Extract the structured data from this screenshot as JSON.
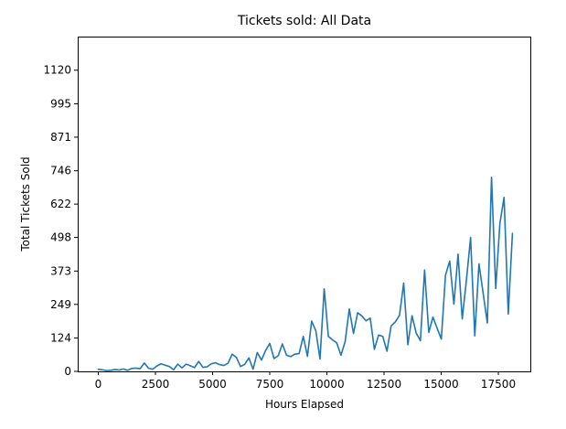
{
  "chart_data": {
    "type": "line",
    "title": "Tickets sold: All Data",
    "xlabel": "Hours Elapsed",
    "ylabel": "Total Tickets Sold",
    "xlim": [
      -900,
      18900
    ],
    "ylim": [
      0,
      1245
    ],
    "x_ticks": [
      0,
      2500,
      5000,
      7500,
      10000,
      12500,
      15000,
      17500
    ],
    "x_tick_labels": [
      "0",
      "2500",
      "5000",
      "7500",
      "10000",
      "12500",
      "15000",
      "17500"
    ],
    "y_ticks": [
      0,
      124,
      249,
      373,
      498,
      622,
      746,
      871,
      995,
      1120
    ],
    "y_tick_labels": [
      "0",
      "124",
      "249",
      "373",
      "498",
      "622",
      "746",
      "871",
      "995",
      "1120"
    ],
    "grid": false,
    "line_color": "#1f77b4",
    "series": [
      {
        "x": [
          0,
          183,
          366,
          549,
          732,
          915,
          1098,
          1281,
          1464,
          1647,
          1830,
          2013,
          2196,
          2379,
          2562,
          2745,
          2928,
          3111,
          3294,
          3477,
          3660,
          3843,
          4026,
          4209,
          4392,
          4575,
          4758,
          4941,
          5124,
          5307,
          5490,
          5673,
          5856,
          6039,
          6222,
          6405,
          6588,
          6771,
          6954,
          7137,
          7320,
          7503,
          7686,
          7869,
          8052,
          8235,
          8418,
          8601,
          8784,
          8967,
          9150,
          9333,
          9516,
          9699,
          9882,
          10065,
          10248,
          10431,
          10614,
          10797,
          10980,
          11163,
          11346,
          11529,
          11712,
          11895,
          12078,
          12261,
          12444,
          12627,
          12810,
          12993,
          13176,
          13359,
          13542,
          13725,
          13908,
          14091,
          14274,
          14457,
          14640,
          14823,
          15006,
          15189,
          15372,
          15555,
          15738,
          15921,
          16104,
          16287,
          16470,
          16653,
          16836,
          17019,
          17202,
          17385,
          17568,
          17751,
          17934,
          18117
        ],
        "y": [
          8,
          6,
          3,
          4,
          7,
          5,
          9,
          4,
          11,
          12,
          10,
          31,
          12,
          8,
          20,
          28,
          23,
          18,
          6,
          27,
          13,
          27,
          21,
          14,
          37,
          15,
          17,
          28,
          32,
          25,
          22,
          30,
          64,
          52,
          18,
          26,
          50,
          8,
          70,
          42,
          78,
          104,
          48,
          58,
          102,
          60,
          55,
          64,
          66,
          130,
          56,
          187,
          151,
          46,
          307,
          130,
          117,
          106,
          60,
          110,
          232,
          141,
          218,
          206,
          188,
          198,
          82,
          135,
          130,
          75,
          169,
          184,
          208,
          328,
          99,
          207,
          142,
          114,
          377,
          145,
          202,
          160,
          120,
          358,
          410,
          250,
          436,
          195,
          340,
          498,
          132,
          400,
          290,
          180,
          722,
          308,
          550,
          647,
          213,
          513
        ]
      }
    ]
  }
}
